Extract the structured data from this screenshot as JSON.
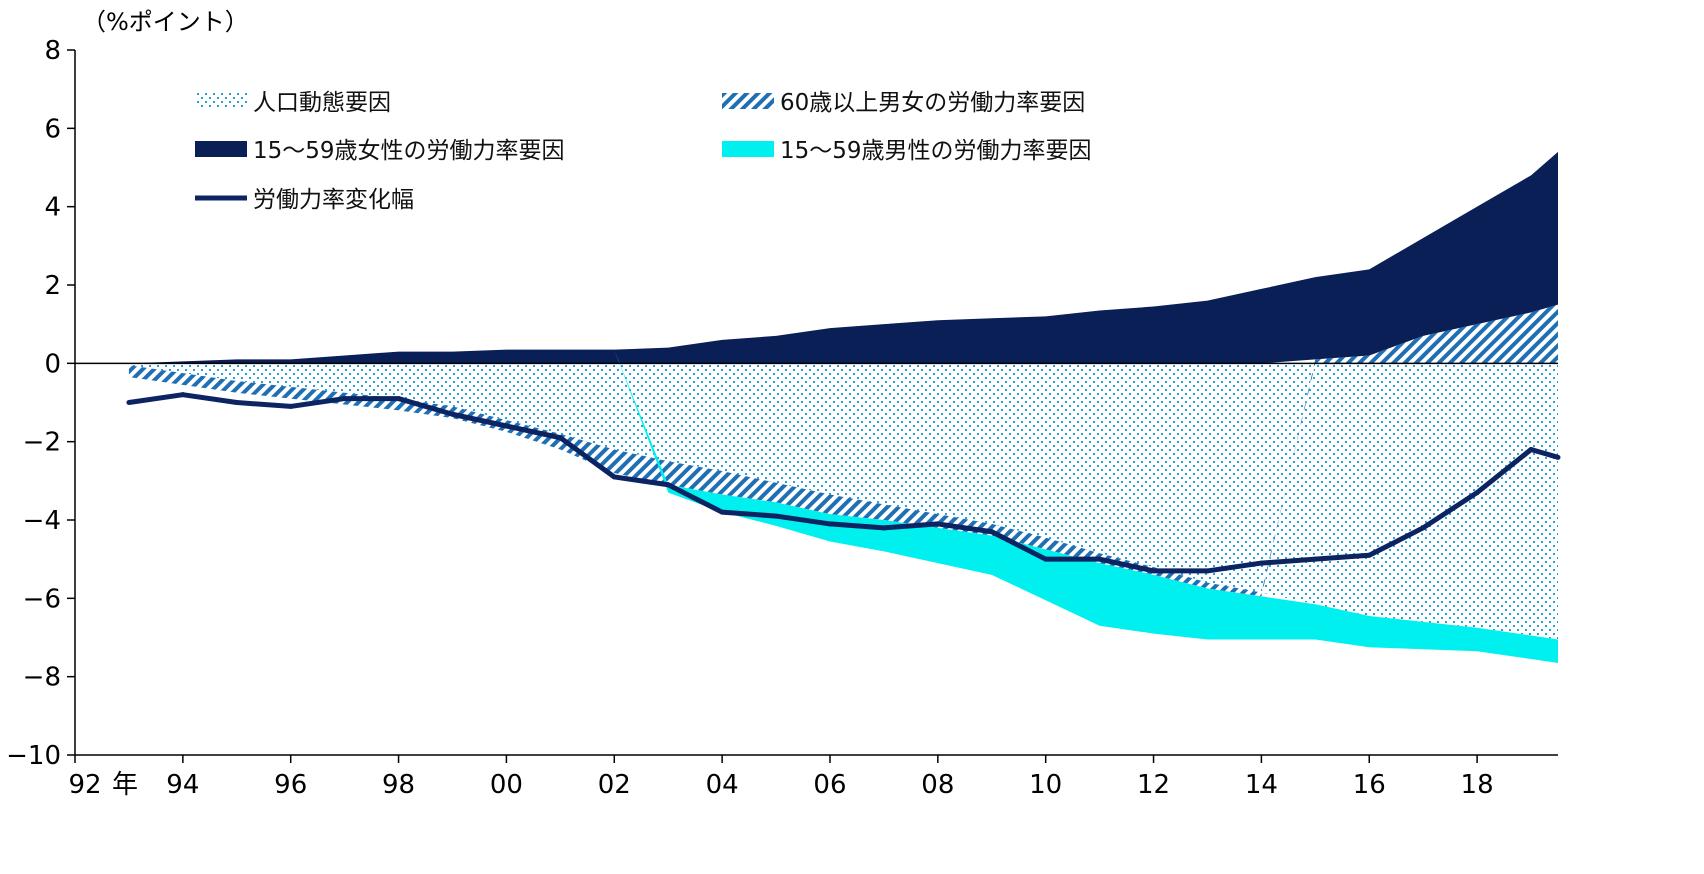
{
  "chart_data": {
    "type": "area",
    "unit_label": "（%ポイント）",
    "x_unit": "年",
    "ylim": [
      -10,
      8
    ],
    "yticks": [
      8,
      6,
      4,
      2,
      0,
      -2,
      -4,
      -6,
      -8,
      -10
    ],
    "ytick_labels": [
      "8",
      "6",
      "4",
      "2",
      "0",
      "−2",
      "−4",
      "−6",
      "−8",
      "−10"
    ],
    "xlim": [
      1992,
      2019.5
    ],
    "xticks": [
      1992,
      1994,
      1996,
      1998,
      2000,
      2002,
      2004,
      2006,
      2008,
      2010,
      2012,
      2014,
      2016,
      2018
    ],
    "xtick_labels": [
      "92",
      "94",
      "96",
      "98",
      "00",
      "02",
      "04",
      "06",
      "08",
      "10",
      "12",
      "14",
      "16",
      "18"
    ],
    "legend": [
      {
        "key": "population",
        "label": "人口動態要因"
      },
      {
        "key": "senior",
        "label": "60歳以上男女の労働力率要因"
      },
      {
        "key": "female",
        "label": "15～59歳女性の労働力率要因"
      },
      {
        "key": "male",
        "label": "15～59歳男性の労働力率要因"
      },
      {
        "key": "total",
        "label": "労働力率変化幅"
      }
    ],
    "x": [
      1993.0,
      1994.0,
      1995.0,
      1996.0,
      1997.0,
      1998.0,
      1999.0,
      2000.0,
      2001.0,
      2002.0,
      2003.0,
      2004.0,
      2005.0,
      2006.0,
      2007.0,
      2008.0,
      2009.0,
      2010.0,
      2011.0,
      2012.0,
      2013.0,
      2014.0,
      2015.0,
      2016.0,
      2017.0,
      2018.0,
      2019.0,
      2019.5
    ],
    "series": [
      {
        "key": "population",
        "name": "人口動態要因",
        "values": [
          -0.05,
          -0.25,
          -0.45,
          -0.6,
          -0.75,
          -0.9,
          -1.1,
          -1.45,
          -1.8,
          -2.2,
          -2.5,
          -2.75,
          -3.05,
          -3.35,
          -3.6,
          -3.85,
          -4.1,
          -4.45,
          -4.85,
          -5.2,
          -5.6,
          -5.85,
          -6.15,
          -6.45,
          -6.6,
          -6.75,
          -6.95,
          -7.05
        ]
      },
      {
        "key": "senior",
        "name": "60歳以上男女の労働力率要因",
        "values": [
          -0.3,
          -0.3,
          -0.3,
          -0.3,
          -0.3,
          -0.3,
          -0.3,
          -0.3,
          -0.4,
          -0.6,
          -0.6,
          -0.6,
          -0.5,
          -0.5,
          -0.4,
          -0.35,
          -0.3,
          -0.3,
          -0.25,
          -0.2,
          -0.15,
          -0.1,
          0.1,
          0.2,
          0.7,
          1.0,
          1.3,
          1.5
        ]
      },
      {
        "key": "female",
        "name": "15～59歳女性の労働力率要因",
        "values": [
          0.0,
          0.05,
          0.1,
          0.1,
          0.2,
          0.3,
          0.3,
          0.35,
          0.35,
          0.35,
          0.4,
          0.6,
          0.7,
          0.9,
          1.0,
          1.1,
          1.15,
          1.2,
          1.35,
          1.45,
          1.6,
          1.9,
          2.1,
          2.2,
          2.5,
          3.0,
          3.5,
          3.9
        ]
      },
      {
        "key": "male",
        "name": "15～59歳男性の労働力率要因",
        "values": [
          0.0,
          0.0,
          0.0,
          0.0,
          0.0,
          0.0,
          0.0,
          0.0,
          0.0,
          0.0,
          -0.2,
          -0.45,
          -0.6,
          -0.7,
          -0.8,
          -0.9,
          -1.0,
          -1.3,
          -1.6,
          -1.5,
          -1.3,
          -1.1,
          -0.9,
          -0.8,
          -0.7,
          -0.6,
          -0.6,
          -0.6
        ]
      },
      {
        "key": "total",
        "name": "労働力率変化幅",
        "values": [
          -1.0,
          -0.8,
          -1.0,
          -1.1,
          -0.9,
          -0.9,
          -1.3,
          -1.6,
          -1.9,
          -2.9,
          -3.1,
          -3.8,
          -3.9,
          -4.1,
          -4.2,
          -4.1,
          -4.3,
          -5.0,
          -5.0,
          -5.3,
          -5.3,
          -5.1,
          -5.0,
          -4.9,
          -4.2,
          -3.3,
          -2.2,
          -2.4
        ]
      }
    ],
    "colors": {
      "population": "#2a9fd8",
      "senior": "#1f6fb5",
      "female": "#0b1f57",
      "male": "#00f0f0",
      "total": "#0d2463",
      "axis": "#000000"
    }
  }
}
